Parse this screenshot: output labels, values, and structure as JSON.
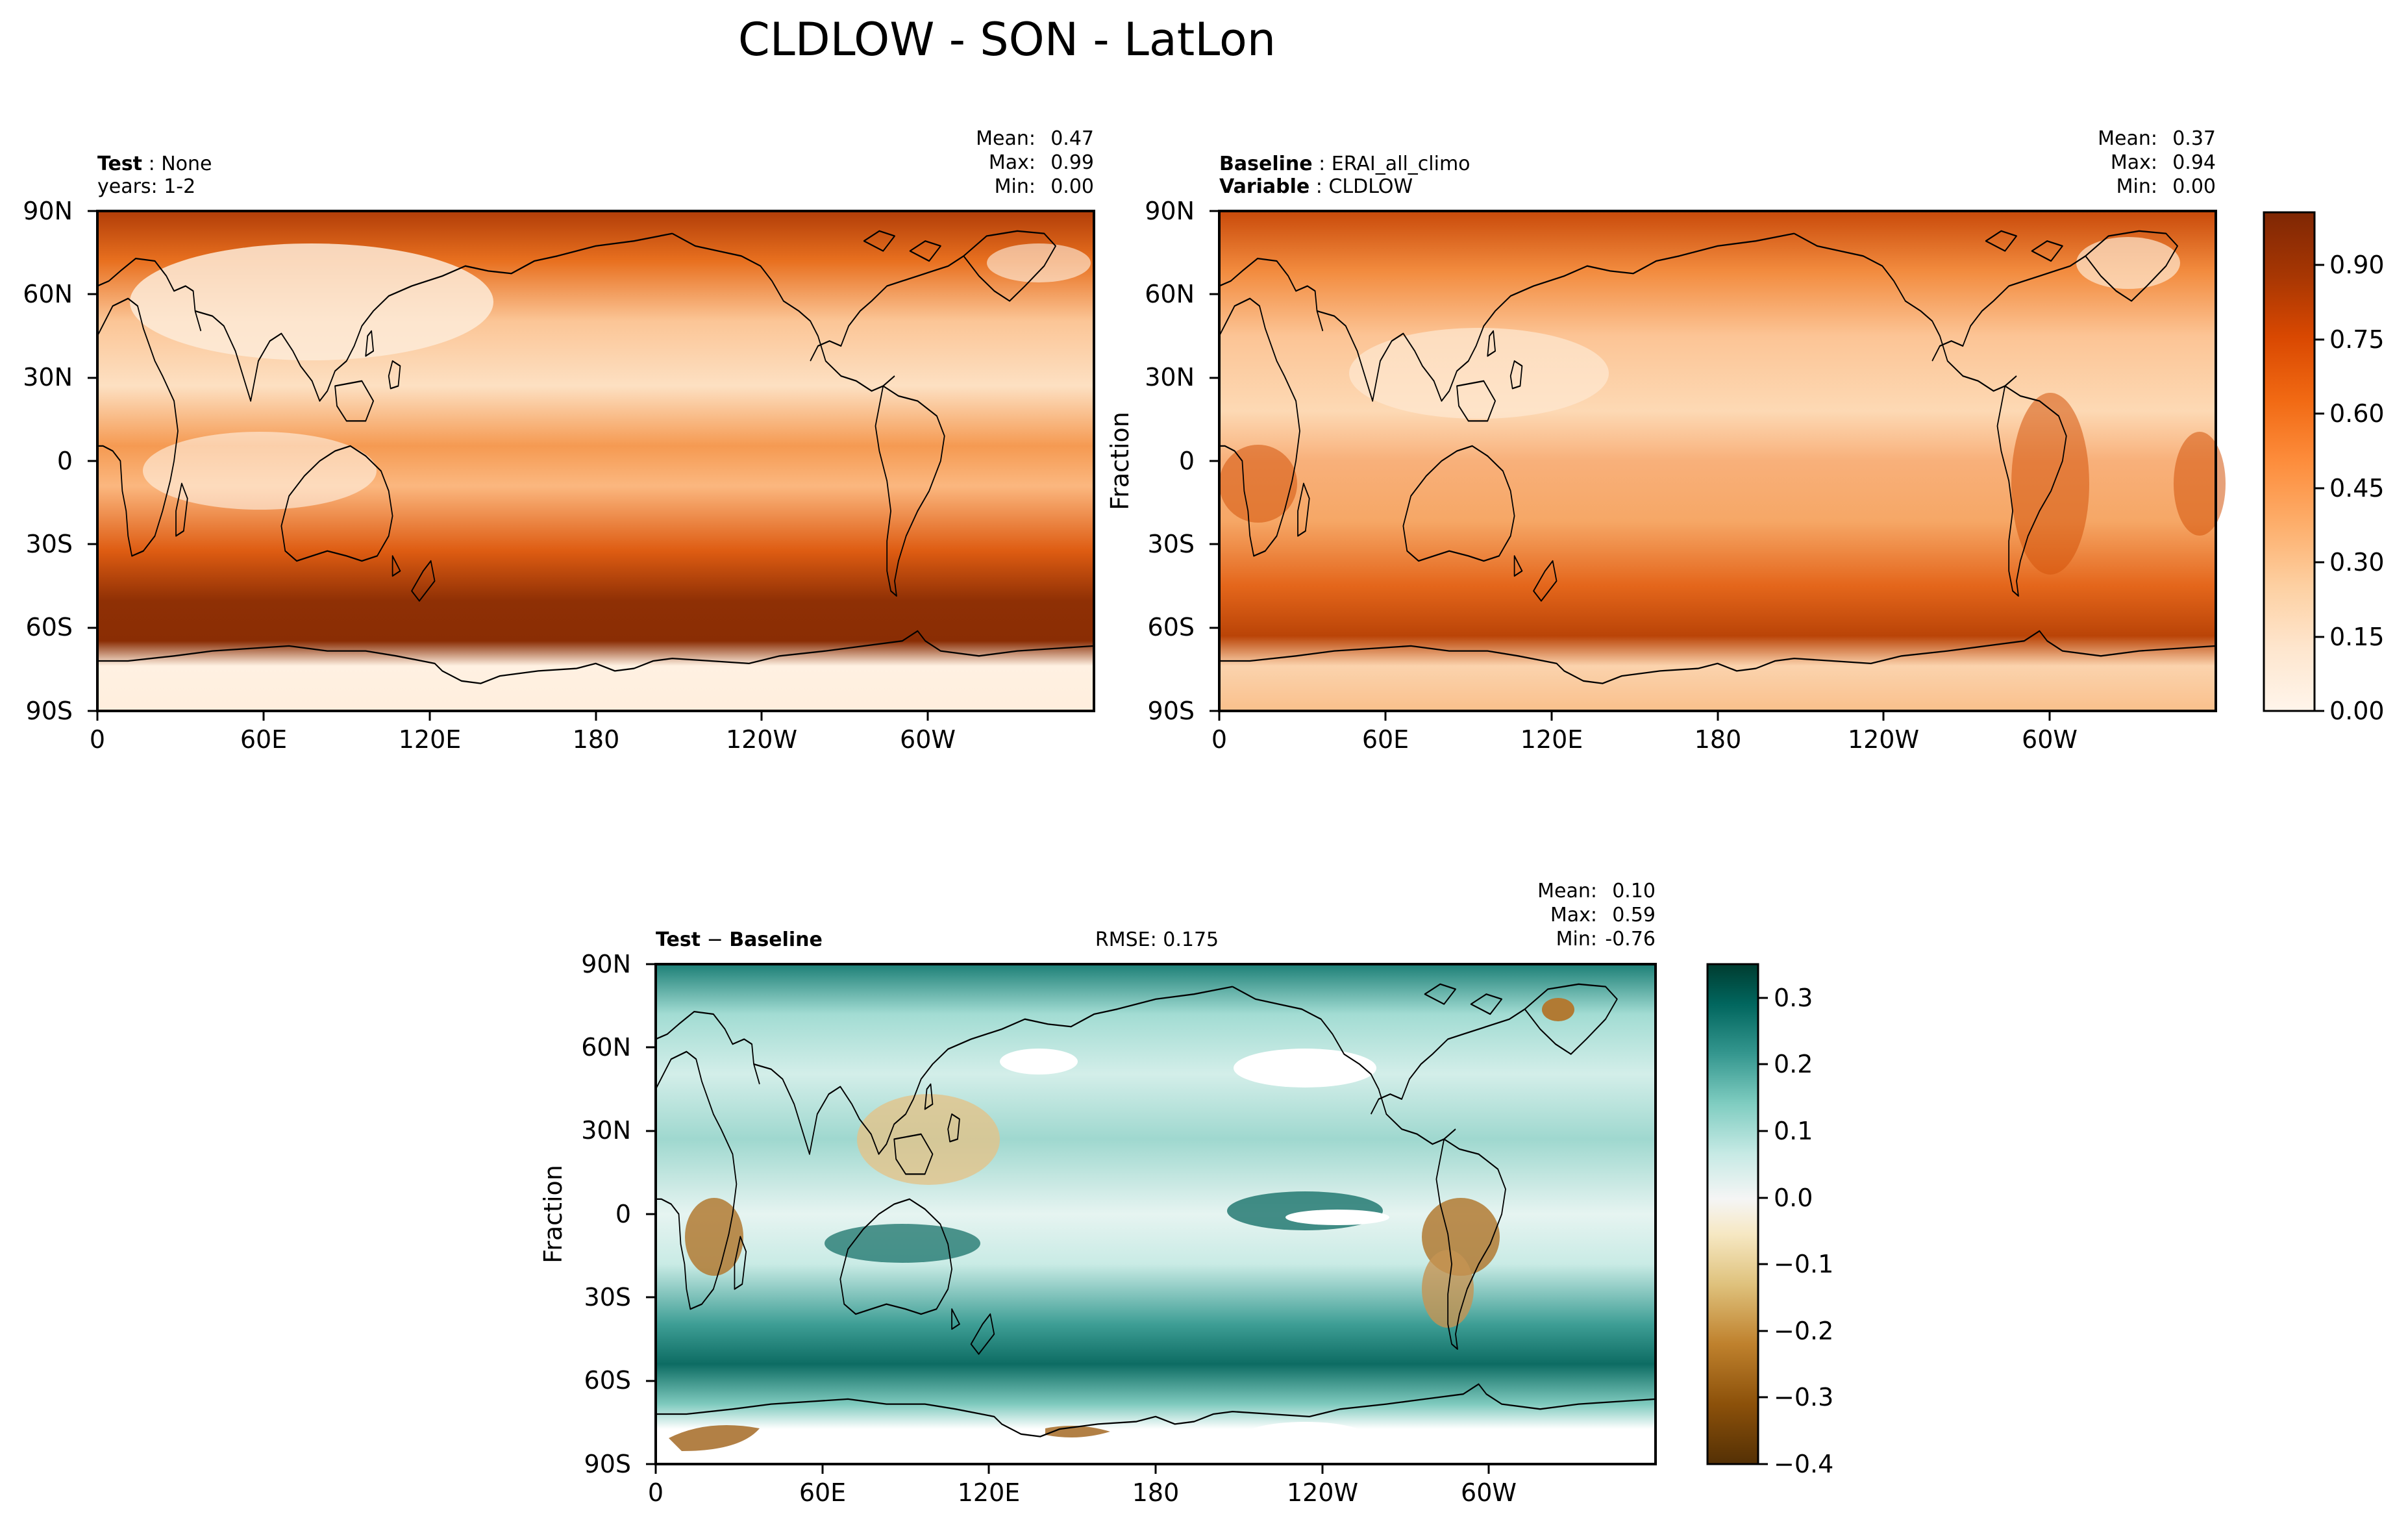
{
  "figure": {
    "suptitle": "CLDLOW - SON - LatLon"
  },
  "chart_data": [
    {
      "type": "heatmap",
      "panel": "test",
      "title_left_bold": "Test",
      "title_left_text": "None",
      "title_left_line2": "years: 1-2",
      "stats": {
        "mean_label": "Mean:",
        "mean": "0.47",
        "max_label": "Max:",
        "max": "0.99",
        "min_label": "Min:",
        "min": "0.00"
      },
      "xticks": [
        "0",
        "60E",
        "120E",
        "180",
        "120W",
        "60W"
      ],
      "yticks": [
        "90N",
        "60N",
        "30N",
        "0",
        "30S",
        "60S",
        "90S"
      ],
      "xlim": [
        0,
        360
      ],
      "ylim": [
        -90,
        90
      ],
      "colormap": "Oranges",
      "overlay": "coastlines"
    },
    {
      "type": "heatmap",
      "panel": "baseline",
      "title_left_bold": "Baseline",
      "title_left_text": "ERAI_all_climo",
      "title_left_bold2": "Variable",
      "title_left_text2": "CLDLOW",
      "stats": {
        "mean_label": "Mean:",
        "mean": "0.37",
        "max_label": "Max:",
        "max": "0.94",
        "min_label": "Min:",
        "min": "0.00"
      },
      "ylabel": "Fraction",
      "xticks": [
        "0",
        "60E",
        "120E",
        "180",
        "120W",
        "60W"
      ],
      "yticks": [
        "90N",
        "60N",
        "30N",
        "0",
        "30S",
        "60S",
        "90S"
      ],
      "xlim": [
        0,
        360
      ],
      "ylim": [
        -90,
        90
      ],
      "colormap": "Oranges",
      "overlay": "coastlines",
      "colorbar": {
        "ticks": [
          "0.00",
          "0.15",
          "0.30",
          "0.45",
          "0.60",
          "0.75",
          "0.90"
        ],
        "range": [
          0,
          1
        ],
        "levels": 20,
        "colors": [
          "#fff5eb",
          "#fee6ce",
          "#fdd0a2",
          "#fdae6b",
          "#fd8d3c",
          "#f16913",
          "#d94801",
          "#a63603",
          "#7f2704"
        ]
      }
    },
    {
      "type": "heatmap",
      "panel": "diff",
      "title_left_bold": "Test",
      "title_left_op": "−",
      "title_left_bold2": "Baseline",
      "rmse_text": "RMSE: 0.175",
      "stats": {
        "mean_label": "Mean:",
        "mean": "0.10",
        "max_label": "Max:",
        "max": "0.59",
        "min_label": "Min:",
        "min": "-0.76"
      },
      "ylabel": "Fraction",
      "xticks": [
        "0",
        "60E",
        "120E",
        "180",
        "120W",
        "60W"
      ],
      "yticks": [
        "90N",
        "60N",
        "30N",
        "0",
        "30S",
        "60S",
        "90S"
      ],
      "xlim": [
        0,
        360
      ],
      "ylim": [
        -90,
        90
      ],
      "colormap": "BrBG",
      "overlay": "coastlines",
      "colorbar": {
        "ticks": [
          "0.3",
          "0.2",
          "0.1",
          "0.0",
          "−0.1",
          "−0.2",
          "−0.3",
          "−0.4"
        ],
        "range": [
          -0.4,
          0.35
        ],
        "levels": 15,
        "colors": [
          "#543005",
          "#8c510a",
          "#bf812d",
          "#dfc27d",
          "#f6e8c3",
          "#f5f5f5",
          "#c7eae5",
          "#80cdc1",
          "#35978f",
          "#01665e",
          "#003c30"
        ]
      }
    }
  ]
}
